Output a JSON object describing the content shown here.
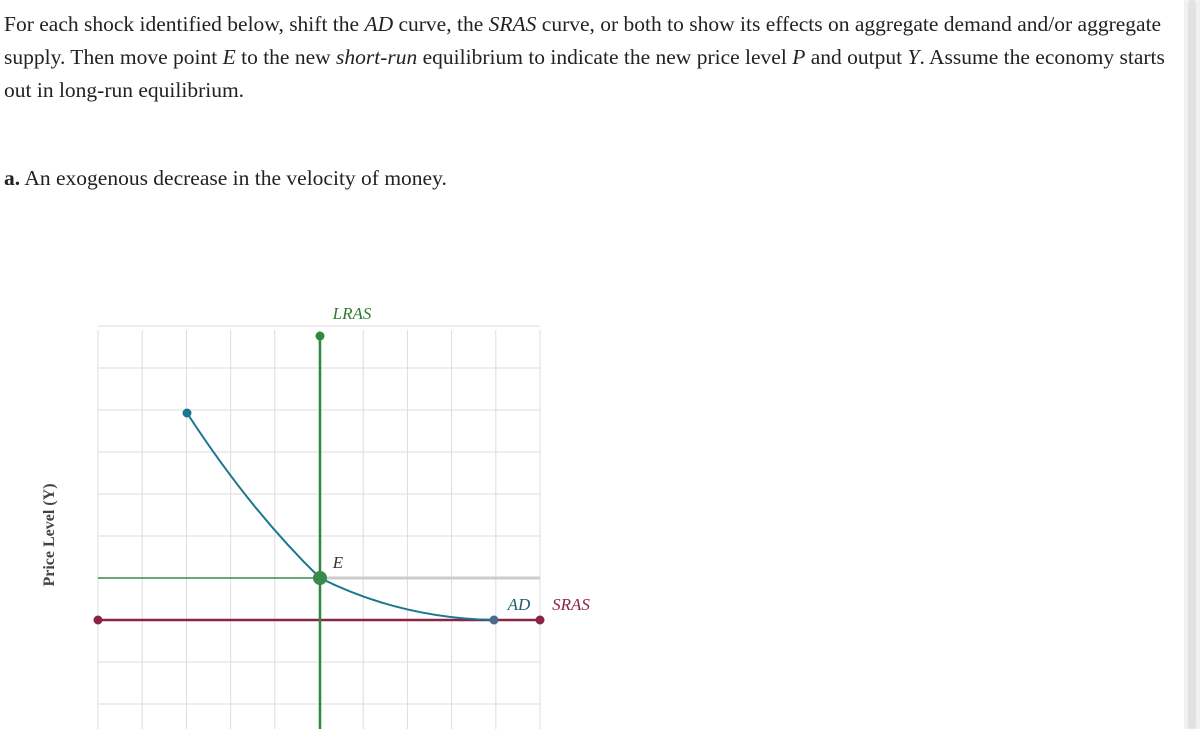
{
  "instructions": [
    "For each shock identified below, shift the ",
    "AD",
    " curve, the ",
    "SRAS",
    " curve, or both to show its effects on aggregate demand and/or aggregate supply. Then move point ",
    "E",
    " to the new ",
    "short-run",
    " equilibrium to indicate the new price level ",
    "P",
    " and output ",
    "Y",
    ". Assume the economy starts out in long-run equilibrium."
  ],
  "part_a": {
    "label": "a.",
    "text": "An exogenous decrease in the velocity of money."
  },
  "graph": {
    "y_axis_label": "Price Level (Y)",
    "curves": {
      "lras": "LRAS",
      "ad": "AD",
      "sras": "SRAS"
    },
    "equilibrium": "E"
  }
}
